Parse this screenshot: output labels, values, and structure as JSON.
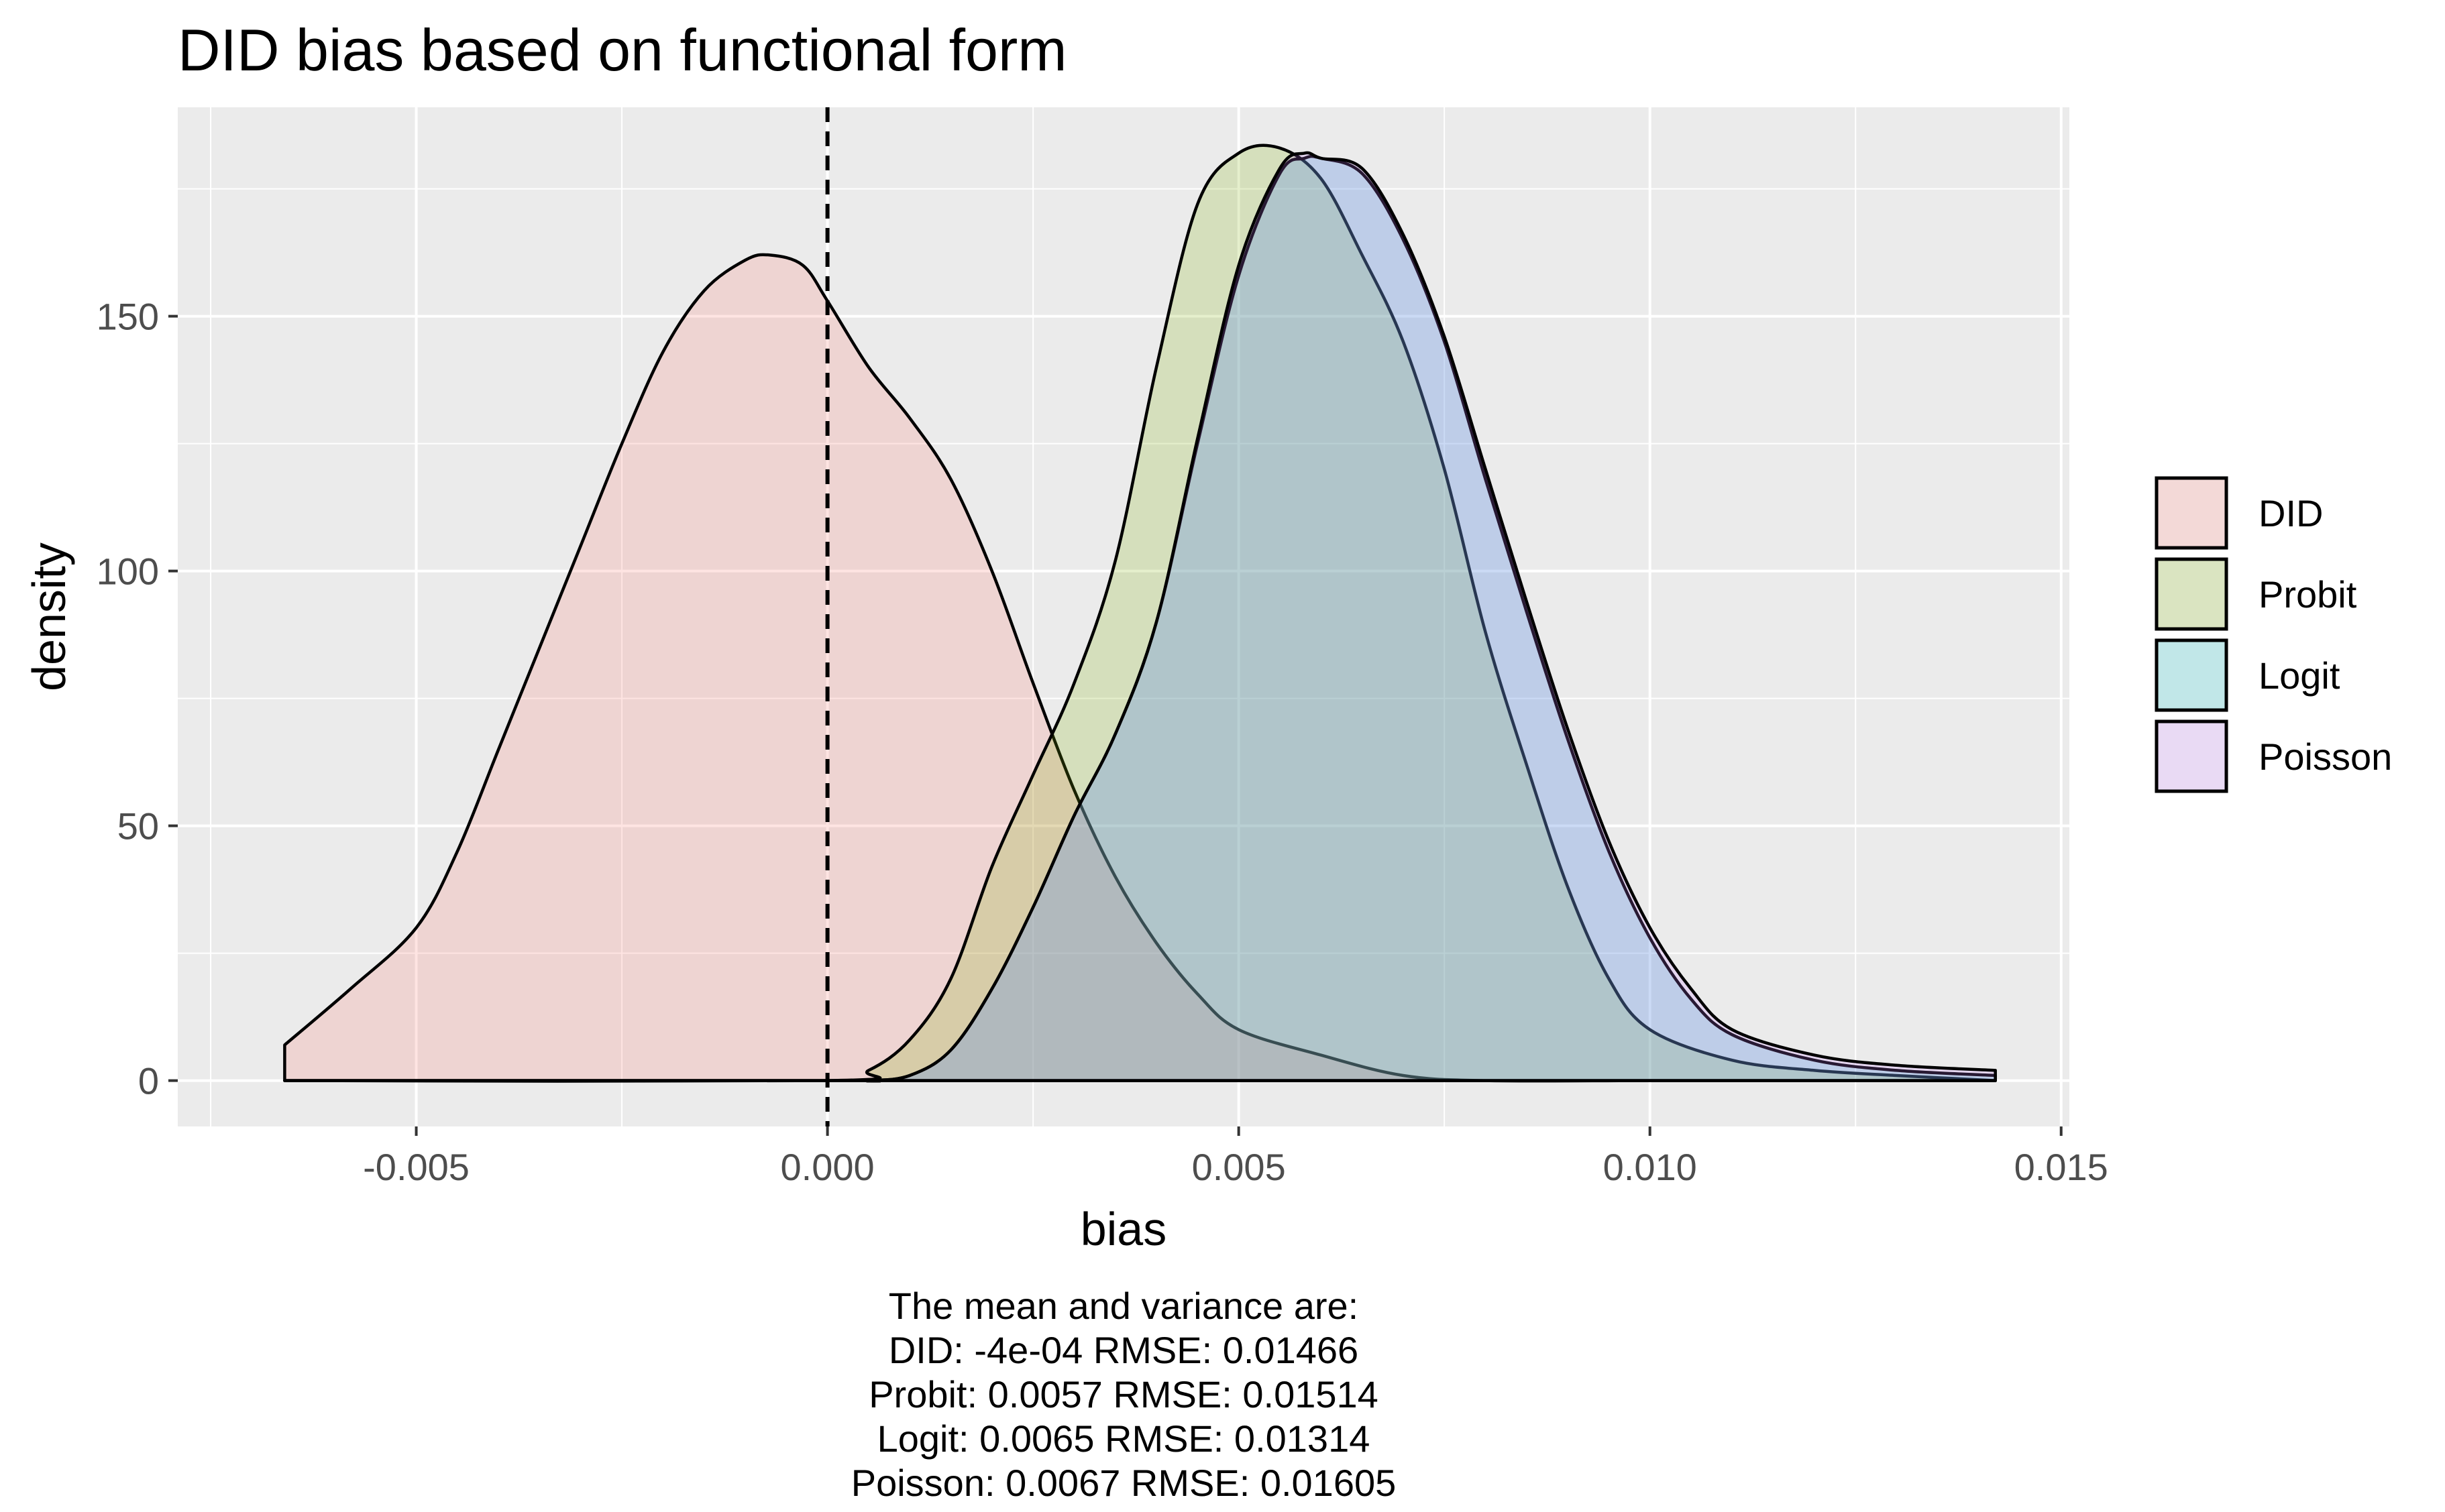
{
  "chart_data": {
    "type": "area",
    "title": "DID bias based on functional form",
    "xlabel": "bias",
    "ylabel": "density",
    "xlim": [
      -0.0079,
      0.0151
    ],
    "ylim": [
      -9,
      191
    ],
    "x_ticks": [
      {
        "value": -0.005,
        "label": "-0.005"
      },
      {
        "value": 0.0,
        "label": "0.000"
      },
      {
        "value": 0.005,
        "label": "0.005"
      },
      {
        "value": 0.01,
        "label": "0.010"
      },
      {
        "value": 0.015,
        "label": "0.015"
      }
    ],
    "y_ticks": [
      {
        "value": 0,
        "label": "0"
      },
      {
        "value": 50,
        "label": "50"
      },
      {
        "value": 100,
        "label": "100"
      },
      {
        "value": 150,
        "label": "150"
      }
    ],
    "grid": true,
    "reference_line": {
      "x": 0,
      "style": "dashed"
    },
    "legend_position": "right",
    "series": [
      {
        "name": "DID",
        "fill": "#F8766D",
        "points": [
          [
            -0.0066,
            7
          ],
          [
            -0.0058,
            18
          ],
          [
            -0.005,
            30
          ],
          [
            -0.0045,
            45
          ],
          [
            -0.004,
            65
          ],
          [
            -0.0035,
            85
          ],
          [
            -0.003,
            105
          ],
          [
            -0.0025,
            125
          ],
          [
            -0.002,
            143
          ],
          [
            -0.0015,
            155
          ],
          [
            -0.001,
            161
          ],
          [
            -0.0007,
            162
          ],
          [
            -0.0003,
            160
          ],
          [
            0.0,
            153
          ],
          [
            0.0005,
            140
          ],
          [
            0.001,
            130
          ],
          [
            0.0015,
            118
          ],
          [
            0.002,
            100
          ],
          [
            0.0025,
            78
          ],
          [
            0.003,
            57
          ],
          [
            0.0035,
            40
          ],
          [
            0.004,
            27
          ],
          [
            0.0045,
            17
          ],
          [
            0.005,
            10
          ],
          [
            0.006,
            5
          ],
          [
            0.007,
            1
          ],
          [
            0.008,
            0
          ],
          [
            0.01,
            0
          ],
          [
            0.012,
            0
          ],
          [
            0.0142,
            0
          ]
        ]
      },
      {
        "name": "Probit",
        "fill": "#7CAE00",
        "points": [
          [
            -0.0066,
            0
          ],
          [
            0.0,
            0
          ],
          [
            0.0005,
            2
          ],
          [
            0.001,
            8
          ],
          [
            0.0015,
            20
          ],
          [
            0.002,
            42
          ],
          [
            0.0025,
            60
          ],
          [
            0.003,
            78
          ],
          [
            0.0035,
            102
          ],
          [
            0.004,
            140
          ],
          [
            0.0045,
            172
          ],
          [
            0.005,
            182
          ],
          [
            0.0055,
            183
          ],
          [
            0.006,
            177
          ],
          [
            0.0065,
            162
          ],
          [
            0.007,
            145
          ],
          [
            0.0075,
            120
          ],
          [
            0.008,
            88
          ],
          [
            0.0085,
            62
          ],
          [
            0.009,
            38
          ],
          [
            0.0095,
            20
          ],
          [
            0.01,
            10
          ],
          [
            0.011,
            4
          ],
          [
            0.012,
            2
          ],
          [
            0.013,
            1
          ],
          [
            0.0142,
            0
          ]
        ]
      },
      {
        "name": "Logit",
        "fill": "#00BFC4",
        "points": [
          [
            -0.0066,
            0
          ],
          [
            0.0,
            0
          ],
          [
            0.0005,
            0
          ],
          [
            0.001,
            1
          ],
          [
            0.0015,
            6
          ],
          [
            0.002,
            18
          ],
          [
            0.0025,
            34
          ],
          [
            0.003,
            52
          ],
          [
            0.0035,
            68
          ],
          [
            0.004,
            90
          ],
          [
            0.0045,
            125
          ],
          [
            0.005,
            158
          ],
          [
            0.0055,
            178
          ],
          [
            0.0058,
            181
          ],
          [
            0.006,
            181
          ],
          [
            0.0065,
            178
          ],
          [
            0.007,
            165
          ],
          [
            0.0075,
            145
          ],
          [
            0.008,
            118
          ],
          [
            0.0085,
            92
          ],
          [
            0.009,
            67
          ],
          [
            0.0095,
            45
          ],
          [
            0.01,
            28
          ],
          [
            0.0105,
            16
          ],
          [
            0.011,
            9
          ],
          [
            0.012,
            4
          ],
          [
            0.013,
            2
          ],
          [
            0.0142,
            1
          ]
        ]
      },
      {
        "name": "Poisson",
        "fill": "#C77CFF",
        "points": [
          [
            -0.0066,
            0
          ],
          [
            0.0,
            0
          ],
          [
            0.0005,
            0
          ],
          [
            0.001,
            1
          ],
          [
            0.0015,
            6
          ],
          [
            0.002,
            18
          ],
          [
            0.0025,
            34
          ],
          [
            0.003,
            52
          ],
          [
            0.0035,
            68
          ],
          [
            0.004,
            90
          ],
          [
            0.0045,
            126
          ],
          [
            0.005,
            160
          ],
          [
            0.0055,
            179
          ],
          [
            0.0058,
            182
          ],
          [
            0.006,
            181
          ],
          [
            0.0065,
            179
          ],
          [
            0.007,
            166
          ],
          [
            0.0075,
            146
          ],
          [
            0.008,
            120
          ],
          [
            0.0085,
            94
          ],
          [
            0.009,
            69
          ],
          [
            0.0095,
            47
          ],
          [
            0.01,
            30
          ],
          [
            0.0105,
            18
          ],
          [
            0.011,
            10
          ],
          [
            0.012,
            5
          ],
          [
            0.013,
            3
          ],
          [
            0.0142,
            2
          ]
        ]
      }
    ],
    "caption_lines": [
      "The mean and variance are:",
      "DID: -4e-04 RMSE: 0.01466",
      "Probit: 0.0057 RMSE: 0.01514",
      "Logit: 0.0065 RMSE: 0.01314",
      "Poisson: 0.0067 RMSE: 0.01605"
    ]
  }
}
